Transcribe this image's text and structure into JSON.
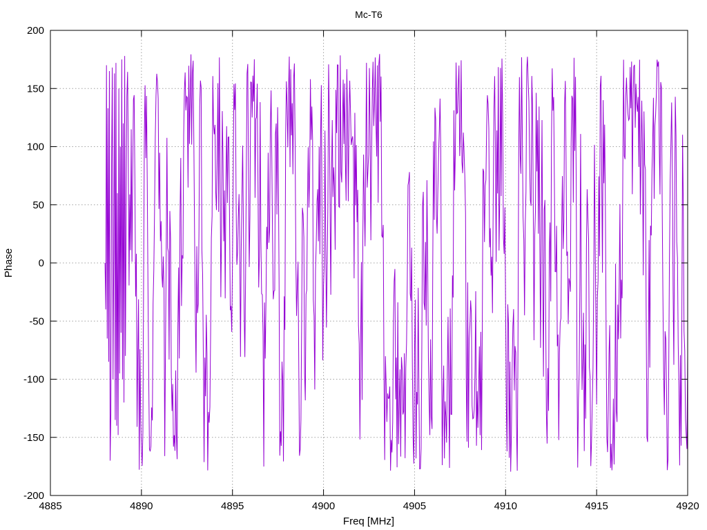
{
  "chart_data": {
    "type": "line",
    "title": "Mc-T6",
    "xlabel": "Freq [MHz]",
    "ylabel": "Phase",
    "xlim": [
      4885,
      4920
    ],
    "ylim": [
      -200,
      200
    ],
    "x_ticks": [
      4885,
      4890,
      4895,
      4900,
      4905,
      4910,
      4915,
      4920
    ],
    "y_ticks": [
      -200,
      -150,
      -100,
      -50,
      0,
      50,
      100,
      150,
      200
    ],
    "grid": true,
    "legend": "none",
    "series": [
      {
        "color": "#9400d3",
        "x_start": 4888.0,
        "x_end": 4920.0,
        "x_step": 0.04,
        "approx_value_range": [
          -180,
          180
        ],
        "approx_values_head": [
          0,
          -40,
          170,
          -65,
          133,
          -85,
          165,
          -170,
          -130,
          85,
          168,
          -100,
          10,
          163,
          -135,
          172,
          -140,
          60,
          -148,
          150,
          -95,
          100,
          -60,
          175,
          -100,
          120,
          -120,
          178,
          -80,
          40
        ]
      }
    ]
  }
}
